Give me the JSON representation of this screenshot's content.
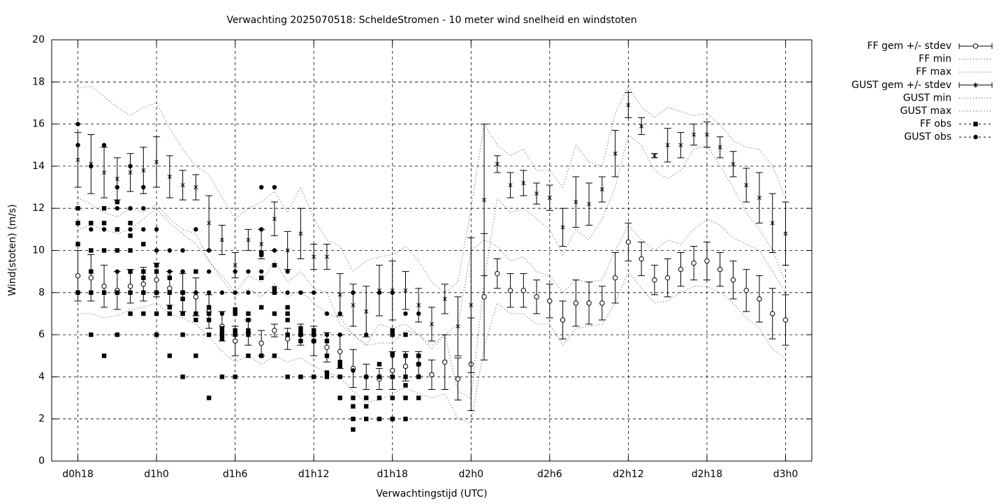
{
  "chart_data": {
    "type": "errorbar",
    "title": "Verwachting 2025070518: ScheldeStromen - 10 meter wind snelheid en windstoten",
    "xlabel": "Verwachtingstijd (UTC)",
    "ylabel": "Wind(stoten) (m/s)",
    "xlim": [
      16,
      74
    ],
    "ylim": [
      0,
      20
    ],
    "xticks": [
      {
        "value": 18,
        "label": "d0h18"
      },
      {
        "value": 24,
        "label": "d1h0"
      },
      {
        "value": 30,
        "label": "d1h6"
      },
      {
        "value": 36,
        "label": "d1h12"
      },
      {
        "value": 42,
        "label": "d1h18"
      },
      {
        "value": 48,
        "label": "d2h0"
      },
      {
        "value": 54,
        "label": "d2h6"
      },
      {
        "value": 60,
        "label": "d2h12"
      },
      {
        "value": 66,
        "label": "d2h18"
      },
      {
        "value": 72,
        "label": "d3h0"
      }
    ],
    "yticks": [
      0,
      2,
      4,
      6,
      8,
      10,
      12,
      14,
      16,
      18,
      20
    ],
    "grid": true,
    "legend": "outside-top-right",
    "x": [
      18,
      19,
      20,
      21,
      22,
      23,
      24,
      25,
      26,
      27,
      28,
      29,
      30,
      31,
      32,
      33,
      34,
      35,
      36,
      37,
      38,
      39,
      40,
      41,
      42,
      43,
      44,
      45,
      46,
      47,
      48,
      49,
      50,
      51,
      52,
      53,
      54,
      55,
      56,
      57,
      58,
      59,
      60,
      61,
      62,
      63,
      64,
      65,
      66,
      67,
      68,
      69,
      70,
      71,
      72
    ],
    "series": [
      {
        "name": "FF gem +/- stdev",
        "kind": "errorbar",
        "marker": "circle",
        "color": "#000000",
        "values": [
          8.8,
          8.7,
          8.3,
          8.1,
          8.3,
          8.4,
          8.6,
          8.2,
          8.0,
          7.8,
          7.1,
          6.4,
          5.7,
          6.1,
          5.6,
          6.2,
          5.8,
          6.0,
          5.7,
          5.4,
          5.2,
          4.4,
          4.0,
          3.9,
          4.3,
          4.5,
          4.6,
          4.1,
          4.7,
          3.9,
          4.6,
          7.8,
          8.9,
          8.1,
          8.1,
          7.8,
          7.6,
          6.7,
          7.5,
          7.5,
          7.5,
          8.7,
          10.4,
          9.6,
          8.6,
          8.7,
          9.1,
          9.4,
          9.5,
          9.1,
          8.6,
          8.1,
          7.7,
          7.0,
          6.7
        ],
        "errors": [
          1.2,
          1.1,
          1.0,
          0.9,
          0.8,
          0.8,
          0.8,
          0.8,
          0.9,
          0.9,
          0.8,
          0.7,
          0.7,
          0.6,
          0.6,
          0.3,
          0.5,
          0.5,
          0.7,
          0.7,
          0.8,
          0.9,
          0.6,
          0.5,
          0.9,
          0.7,
          0.6,
          0.7,
          1.3,
          1.0,
          2.2,
          3.0,
          0.7,
          0.8,
          0.8,
          0.8,
          0.8,
          0.9,
          1.1,
          1.0,
          0.8,
          1.2,
          0.9,
          0.8,
          0.7,
          0.9,
          0.8,
          0.8,
          0.9,
          0.8,
          0.9,
          1.0,
          1.1,
          1.2,
          1.2
        ]
      },
      {
        "name": "FF min",
        "kind": "line",
        "color": "#000000",
        "values": [
          7.0,
          7.0,
          6.8,
          6.9,
          7.2,
          7.3,
          7.5,
          7.0,
          6.8,
          6.5,
          5.9,
          5.2,
          4.7,
          5.0,
          4.6,
          5.0,
          4.7,
          4.9,
          4.5,
          4.2,
          4.0,
          3.3,
          2.8,
          2.9,
          3.2,
          3.5,
          3.2,
          3.0,
          3.2,
          2.0,
          1.8,
          5.5,
          7.5,
          7.0,
          7.0,
          6.5,
          6.5,
          5.5,
          6.3,
          6.4,
          6.5,
          7.5,
          9.0,
          8.2,
          7.5,
          7.6,
          8.0,
          8.3,
          8.3,
          8.0,
          7.5,
          6.8,
          6.3,
          5.3,
          4.9
        ]
      },
      {
        "name": "FF max",
        "kind": "line",
        "color": "#000000",
        "values": [
          11.0,
          11.2,
          11.0,
          10.8,
          11.0,
          11.5,
          12.0,
          11.3,
          10.8,
          10.3,
          9.5,
          8.6,
          7.8,
          8.2,
          7.8,
          8.4,
          7.8,
          8.1,
          7.5,
          7.0,
          6.8,
          6.0,
          5.5,
          5.6,
          5.6,
          6.2,
          6.0,
          5.5,
          6.0,
          6.5,
          10.0,
          10.5,
          10.2,
          9.5,
          9.7,
          9.0,
          8.8,
          8.0,
          8.6,
          8.5,
          8.6,
          10.0,
          11.2,
          10.5,
          10.0,
          10.5,
          10.3,
          11.0,
          11.5,
          11.2,
          10.6,
          10.3,
          10.0,
          9.0,
          8.0
        ]
      },
      {
        "name": "GUST gem +/- stdev",
        "kind": "errorbar",
        "marker": "star",
        "color": "#000000",
        "values": [
          14.3,
          14.1,
          13.7,
          13.4,
          13.7,
          13.8,
          14.2,
          13.5,
          13.1,
          13.0,
          11.3,
          10.5,
          9.3,
          10.5,
          10.3,
          11.5,
          10.0,
          10.8,
          9.7,
          9.7,
          7.9,
          7.4,
          7.1,
          8.1,
          8.1,
          8.1,
          7.4,
          6.5,
          7.7,
          6.4,
          7.4,
          12.4,
          14.1,
          13.1,
          13.2,
          12.7,
          12.5,
          11.1,
          12.3,
          12.2,
          12.9,
          14.6,
          16.9,
          15.9,
          14.5,
          15.0,
          15.0,
          15.5,
          15.5,
          14.9,
          14.1,
          13.1,
          12.5,
          11.3,
          10.8
        ],
        "errors": [
          1.3,
          1.4,
          1.2,
          1.0,
          0.9,
          1.1,
          1.2,
          1.0,
          0.7,
          0.6,
          1.3,
          0.7,
          0.6,
          0.5,
          0.7,
          0.8,
          0.9,
          1.2,
          0.6,
          0.6,
          1.0,
          1.0,
          1.2,
          1.2,
          1.4,
          0.9,
          0.8,
          0.8,
          0.7,
          1.4,
          3.2,
          3.6,
          0.4,
          0.6,
          0.6,
          0.5,
          0.6,
          0.9,
          1.2,
          1.0,
          0.6,
          1.1,
          0.6,
          0.4,
          0.1,
          0.8,
          0.6,
          0.5,
          0.6,
          0.5,
          0.6,
          0.8,
          1.2,
          1.4,
          1.5
        ]
      },
      {
        "name": "GUST min",
        "kind": "line",
        "color": "#000000",
        "values": [
          12.5,
          12.2,
          11.8,
          11.6,
          12.0,
          11.8,
          12.2,
          11.5,
          11.0,
          10.8,
          9.5,
          8.8,
          8.0,
          8.8,
          8.5,
          9.5,
          8.5,
          9.0,
          8.2,
          8.0,
          6.5,
          6.0,
          5.5,
          6.5,
          6.3,
          6.5,
          6.0,
          5.3,
          6.0,
          3.3,
          3.0,
          8.5,
          12.5,
          11.8,
          12.0,
          11.5,
          11.0,
          9.8,
          11.0,
          10.5,
          11.5,
          13.0,
          15.5,
          15.0,
          13.8,
          13.4,
          13.8,
          14.8,
          15.0,
          14.0,
          13.0,
          11.8,
          11.0,
          10.0,
          8.5
        ]
      },
      {
        "name": "GUST max",
        "kind": "line",
        "color": "#000000",
        "values": [
          17.7,
          17.8,
          17.3,
          16.8,
          16.4,
          16.8,
          17.0,
          15.8,
          14.8,
          14.0,
          13.6,
          12.5,
          11.5,
          12.0,
          12.3,
          12.8,
          11.8,
          13.0,
          11.5,
          10.5,
          10.2,
          9.0,
          9.5,
          9.7,
          9.8,
          10.2,
          9.5,
          8.5,
          8.0,
          8.5,
          12.0,
          16.0,
          15.0,
          14.5,
          14.8,
          13.8,
          13.8,
          13.0,
          15.0,
          14.2,
          14.0,
          16.5,
          17.8,
          16.8,
          16.3,
          16.8,
          16.6,
          16.4,
          16.5,
          16.0,
          15.2,
          14.9,
          14.8,
          14.0,
          12.5
        ]
      },
      {
        "name": "FF obs",
        "kind": "points",
        "marker": "square",
        "color": "#000000",
        "x": [
          18,
          18,
          18,
          18,
          19,
          19,
          19,
          19,
          19,
          20,
          20,
          20,
          20,
          20,
          21,
          21,
          21,
          21,
          21,
          22,
          22,
          22,
          22,
          22,
          22,
          23,
          23,
          23,
          23,
          23,
          24,
          24,
          24,
          24,
          24,
          25,
          25,
          25,
          25,
          25,
          26,
          26,
          26,
          26,
          26,
          27,
          27,
          27,
          27,
          28,
          28,
          28,
          28,
          28,
          29,
          29,
          29,
          29,
          29,
          30,
          30,
          30,
          30,
          30,
          31,
          31,
          31,
          31,
          31,
          32,
          32,
          32,
          32,
          32,
          33,
          33,
          33,
          33,
          33,
          34,
          34,
          34,
          34,
          34,
          35,
          35,
          35,
          35,
          35,
          36,
          36,
          36,
          36,
          37,
          37,
          37,
          37,
          38,
          38,
          38,
          38,
          39,
          39,
          39,
          39,
          40,
          40,
          40,
          41,
          41,
          41,
          41,
          42,
          42,
          42,
          42,
          42,
          42,
          43,
          43,
          43,
          43,
          43,
          43,
          44,
          44,
          44,
          44
        ],
        "values": [
          12,
          11.3,
          10.3,
          8,
          11.3,
          10,
          9,
          8,
          6,
          12,
          11.3,
          10,
          8,
          5,
          12.3,
          11,
          10,
          8,
          6,
          11.3,
          10.7,
          10,
          9,
          8,
          7,
          10.3,
          9,
          8.7,
          8,
          7,
          9.3,
          9,
          8,
          7,
          6,
          8.7,
          8,
          7.3,
          7,
          5,
          8,
          7.7,
          7,
          6,
          4,
          9,
          7,
          6.7,
          5,
          7.3,
          7,
          6.7,
          6,
          3,
          6.3,
          6.1,
          6,
          5.8,
          4,
          7.2,
          7,
          6.2,
          6,
          4,
          7,
          6.7,
          6.2,
          6,
          5,
          9.9,
          9.8,
          8.7,
          7.3,
          5,
          9.3,
          8.2,
          8,
          7,
          5,
          7.3,
          7,
          6.7,
          6,
          4,
          6.3,
          6.1,
          6,
          5.7,
          4,
          6.2,
          6,
          5.7,
          4,
          5.7,
          5,
          4.2,
          4,
          4.7,
          4.5,
          4,
          3,
          3,
          2.6,
          2,
          1.5,
          3,
          2.6,
          2,
          4.6,
          4,
          3,
          2,
          6.2,
          6,
          5.1,
          4,
          3,
          2,
          6,
          5,
          4,
          3.6,
          3,
          2,
          5,
          4.6,
          4,
          3
        ]
      },
      {
        "name": "GUST obs",
        "kind": "points",
        "marker": "dot",
        "color": "#000000",
        "x": [
          18,
          18,
          19,
          19,
          19,
          20,
          20,
          20,
          21,
          21,
          21,
          21,
          22,
          22,
          22,
          22,
          23,
          23,
          23,
          23,
          24,
          24,
          24,
          25,
          25,
          25,
          26,
          26,
          27,
          27,
          28,
          28,
          28,
          29,
          29,
          29,
          30,
          30,
          31,
          31,
          32,
          32,
          32,
          33,
          33,
          33,
          34,
          34,
          35,
          36,
          36,
          37,
          37,
          38,
          38,
          39,
          39,
          40,
          40,
          41,
          41,
          41,
          42,
          42,
          42,
          43,
          43,
          43,
          44,
          44
        ],
        "values": [
          16,
          15,
          14,
          11,
          9,
          15,
          11.3,
          11,
          13,
          12,
          11,
          9,
          14,
          12,
          11,
          9,
          13,
          12,
          11,
          9,
          11,
          10,
          8,
          10,
          9,
          8,
          10,
          9,
          11,
          8,
          10,
          9,
          8,
          8,
          7,
          6,
          9,
          8,
          9,
          8,
          13,
          11,
          9,
          13,
          10,
          8,
          9,
          8,
          8,
          8,
          6,
          7,
          6,
          7,
          6,
          8,
          4.3,
          6,
          4,
          8,
          4.6,
          4,
          8,
          5,
          3,
          7,
          5,
          3,
          7,
          5
        ]
      }
    ]
  }
}
